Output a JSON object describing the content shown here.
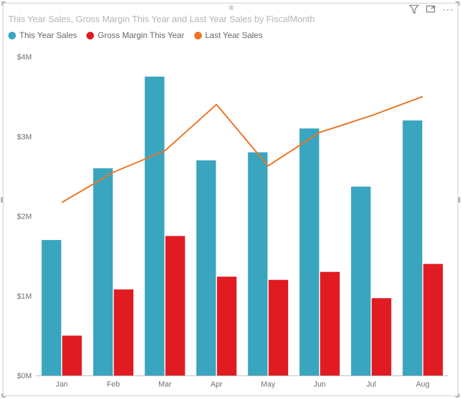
{
  "title": "This Year Sales, Gross Margin This Year and Last Year Sales by FiscalMonth",
  "header": {
    "filter_icon": "filter-icon",
    "focus_icon": "focus-mode-icon",
    "more_icon": "more-options-icon"
  },
  "legend": [
    {
      "label": "This Year Sales",
      "color": "#3aa5bf"
    },
    {
      "label": "Gross Margin This Year",
      "color": "#e01b22"
    },
    {
      "label": "Last Year Sales",
      "color": "#ec7424"
    }
  ],
  "chart": {
    "type": "combo-bar-line",
    "categories": [
      "Jan",
      "Feb",
      "Mar",
      "Apr",
      "May",
      "Jun",
      "Jul",
      "Aug"
    ],
    "series_bars": [
      {
        "name": "This Year Sales",
        "color": "#3aa5bf",
        "values": [
          1700000,
          2600000,
          3750000,
          2700000,
          2800000,
          3100000,
          2370000,
          3200000
        ]
      },
      {
        "name": "Gross Margin This Year",
        "color": "#e01b22",
        "values": [
          500000,
          1080000,
          1750000,
          1240000,
          1200000,
          1300000,
          970000,
          1400000
        ]
      }
    ],
    "series_line": {
      "name": "Last Year Sales",
      "color": "#ec7424",
      "values": [
        2170000,
        2550000,
        2820000,
        3400000,
        2630000,
        3050000,
        3260000,
        3500000
      ],
      "line_width": 2
    },
    "y": {
      "min": 0,
      "max": 4000000,
      "ticks": [
        0,
        1000000,
        2000000,
        3000000,
        4000000
      ],
      "tick_labels": [
        "$0M",
        "$1M",
        "$2M",
        "$3M",
        "$4M"
      ]
    },
    "axis_color": "#707070",
    "axis_fontsize": 11,
    "bar_group_width": 0.78,
    "bar_inner_gap": 0.02,
    "background": "#ffffff"
  }
}
